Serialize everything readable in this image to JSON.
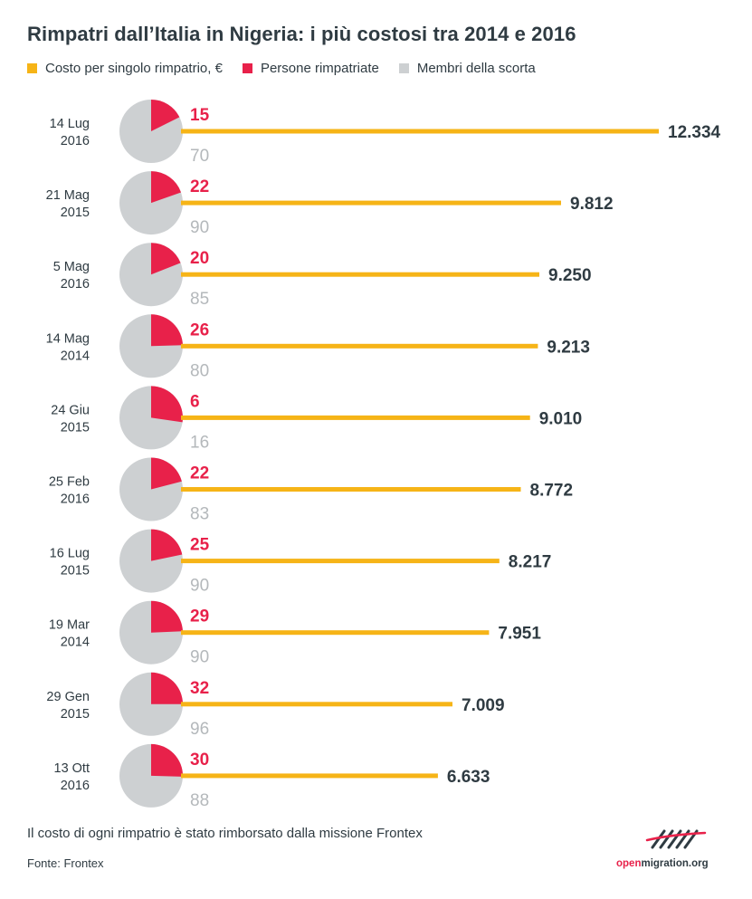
{
  "title": "Rimpatri dall’Italia in Nigeria: i più costosi tra 2014 e 2016",
  "legend": [
    {
      "label": "Costo per singolo rimpatrio, €",
      "color": "#f6b417"
    },
    {
      "label": "Persone rimpatriate",
      "color": "#e8214a"
    },
    {
      "label": "Membri della scorta",
      "color": "#cdd0d2"
    }
  ],
  "note": "Il costo di ogni rimpatrio è stato rimborsato dalla missione Frontex",
  "source": "Fonte: Frontex",
  "logo": {
    "accent": "open",
    "rest": "migration.org",
    "mark": "openmigration-logo-icon"
  },
  "chart_data": {
    "type": "bar",
    "orientation": "horizontal",
    "categories": [
      [
        "14 Lug",
        "2016"
      ],
      [
        "21 Mag",
        "2015"
      ],
      [
        "5 Mag",
        "2016"
      ],
      [
        "14 Mag",
        "2014"
      ],
      [
        "24 Giu",
        "2015"
      ],
      [
        "25 Feb",
        "2016"
      ],
      [
        "16 Lug",
        "2015"
      ],
      [
        "19 Mar",
        "2014"
      ],
      [
        "29 Gen",
        "2015"
      ],
      [
        "13 Ott",
        "2016"
      ]
    ],
    "series": [
      {
        "name": "Costo per singolo rimpatrio, €",
        "values": [
          12334,
          9812,
          9250,
          9213,
          9010,
          8772,
          8217,
          7951,
          7009,
          6633
        ],
        "labels": [
          "12.334",
          "9.812",
          "9.250",
          "9.213",
          "9.010",
          "8.772",
          "8.217",
          "7.951",
          "7.009",
          "6.633"
        ]
      },
      {
        "name": "Persone rimpatriate",
        "values": [
          15,
          22,
          20,
          26,
          6,
          22,
          25,
          29,
          32,
          30
        ]
      },
      {
        "name": "Membri della scorta",
        "values": [
          70,
          90,
          85,
          80,
          16,
          83,
          90,
          90,
          96,
          88
        ]
      }
    ],
    "xlim": [
      0,
      12334
    ],
    "grid": false,
    "legend": "top-left"
  }
}
